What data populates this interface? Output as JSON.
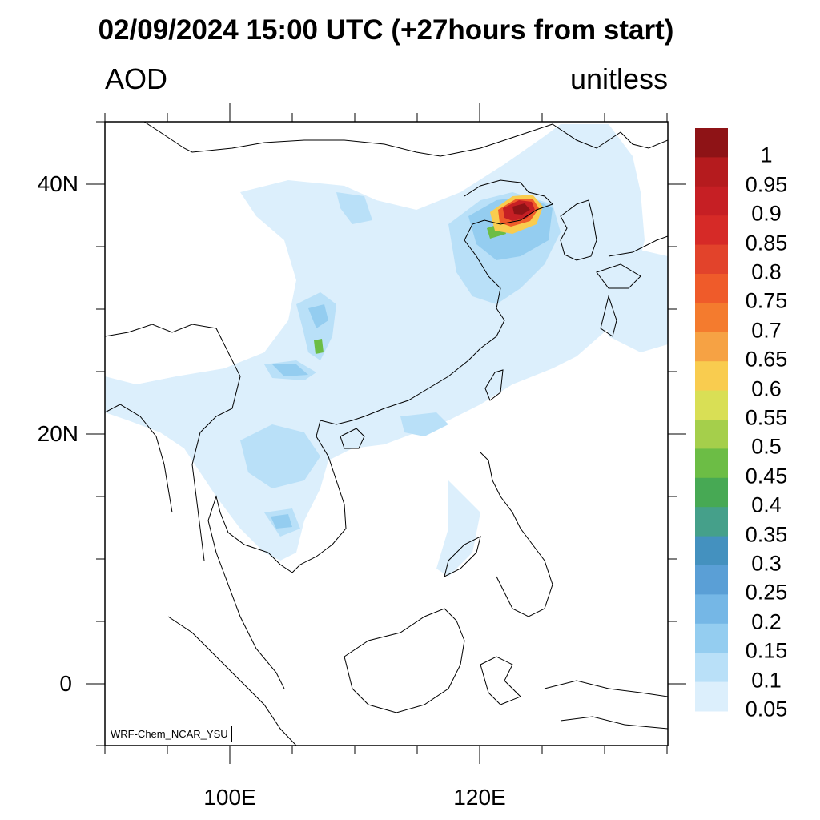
{
  "title": "02/09/2024 15:00 UTC (+27hours from start)",
  "variable_label": "AOD",
  "units_label": "unitless",
  "credit": "WRF-Chem_NCAR_YSU",
  "lat_labels": [
    "40N",
    "20N",
    "0"
  ],
  "lon_labels": [
    "100E",
    "120E"
  ],
  "map_extent": {
    "lon_min": 90,
    "lon_max": 135,
    "lat_min": -5,
    "lat_max": 45
  },
  "lat_ticks": [
    40,
    20,
    0
  ],
  "lon_ticks": [
    100,
    120
  ],
  "colorbar": {
    "labels": [
      "1",
      "0.95",
      "0.9",
      "0.85",
      "0.8",
      "0.75",
      "0.7",
      "0.65",
      "0.6",
      "0.55",
      "0.5",
      "0.45",
      "0.4",
      "0.35",
      "0.3",
      "0.25",
      "0.2",
      "0.15",
      "0.1",
      "0.05"
    ],
    "colors": [
      "#8e1316",
      "#b51b1e",
      "#c61f24",
      "#d62a27",
      "#e2432b",
      "#ef5b2a",
      "#f47b2e",
      "#f6a244",
      "#f9cc4f",
      "#d9df55",
      "#a5cf4b",
      "#6cbd45",
      "#47a954",
      "#45a08a",
      "#4491bf",
      "#5a9fd6",
      "#75b7e6",
      "#94cdf0",
      "#b9e0f8",
      "#dceffc"
    ]
  },
  "aod_colors": {
    "light": "#dceffc",
    "pale": "#b9e0f8",
    "mid": "#94cdf0",
    "blue": "#75b7e6",
    "green": "#47a954",
    "yellow": "#f9cc4f",
    "orange": "#ef5b2a",
    "red": "#c61f24",
    "dark": "#8e1316"
  }
}
